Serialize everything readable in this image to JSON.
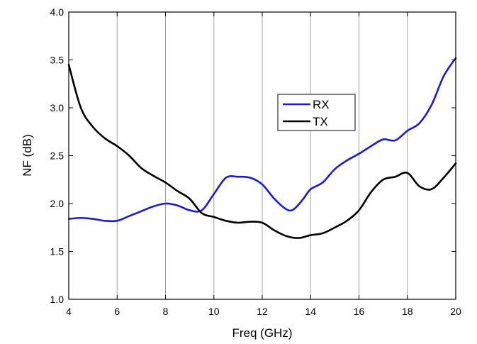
{
  "chart_data": {
    "type": "line",
    "title": "",
    "xlabel": "Freq (GHz)",
    "ylabel": "NF (dB)",
    "xlim": [
      4,
      20
    ],
    "ylim": [
      1.0,
      4.0
    ],
    "xticks": [
      4,
      6,
      8,
      10,
      12,
      14,
      16,
      18,
      20
    ],
    "xtick_labels": [
      "4",
      "6",
      "8",
      "10",
      "12",
      "14",
      "16",
      "18",
      "20"
    ],
    "yticks": [
      1.0,
      1.5,
      2.0,
      2.5,
      3.0,
      3.5,
      4.0
    ],
    "ytick_labels": [
      "1.0",
      "1.5",
      "2.0",
      "2.5",
      "3.0",
      "3.5",
      "4.0"
    ],
    "grid": "vertical",
    "legend_position": "center-right",
    "series": [
      {
        "name": "RX",
        "color": "#1a1adc",
        "x": [
          4.0,
          4.5,
          5.0,
          5.5,
          6.0,
          6.5,
          7.0,
          7.5,
          8.0,
          8.5,
          9.0,
          9.5,
          10.0,
          10.5,
          11.0,
          11.5,
          12.0,
          12.5,
          13.0,
          13.3,
          13.7,
          14.0,
          14.5,
          15.0,
          15.5,
          16.0,
          16.5,
          17.0,
          17.5,
          18.0,
          18.5,
          19.0,
          19.5,
          20.0
        ],
        "y": [
          1.84,
          1.85,
          1.84,
          1.82,
          1.82,
          1.87,
          1.92,
          1.97,
          2.0,
          1.98,
          1.93,
          1.93,
          2.1,
          2.27,
          2.28,
          2.27,
          2.2,
          2.05,
          1.94,
          1.94,
          2.05,
          2.15,
          2.22,
          2.36,
          2.45,
          2.52,
          2.6,
          2.67,
          2.66,
          2.76,
          2.84,
          3.03,
          3.33,
          3.52
        ]
      },
      {
        "name": "TX",
        "color": "#000000",
        "x": [
          4.0,
          4.5,
          5.0,
          5.5,
          6.0,
          6.5,
          7.0,
          7.5,
          8.0,
          8.5,
          9.0,
          9.5,
          10.0,
          10.5,
          11.0,
          11.5,
          12.0,
          12.5,
          13.0,
          13.5,
          14.0,
          14.5,
          15.0,
          15.5,
          16.0,
          16.5,
          17.0,
          17.5,
          18.0,
          18.5,
          19.0,
          19.5,
          20.0
        ],
        "y": [
          3.45,
          3.0,
          2.8,
          2.68,
          2.6,
          2.5,
          2.37,
          2.29,
          2.22,
          2.13,
          2.05,
          1.9,
          1.86,
          1.82,
          1.8,
          1.81,
          1.8,
          1.72,
          1.66,
          1.64,
          1.67,
          1.69,
          1.75,
          1.82,
          1.93,
          2.12,
          2.25,
          2.28,
          2.32,
          2.18,
          2.15,
          2.27,
          2.42
        ]
      }
    ]
  }
}
